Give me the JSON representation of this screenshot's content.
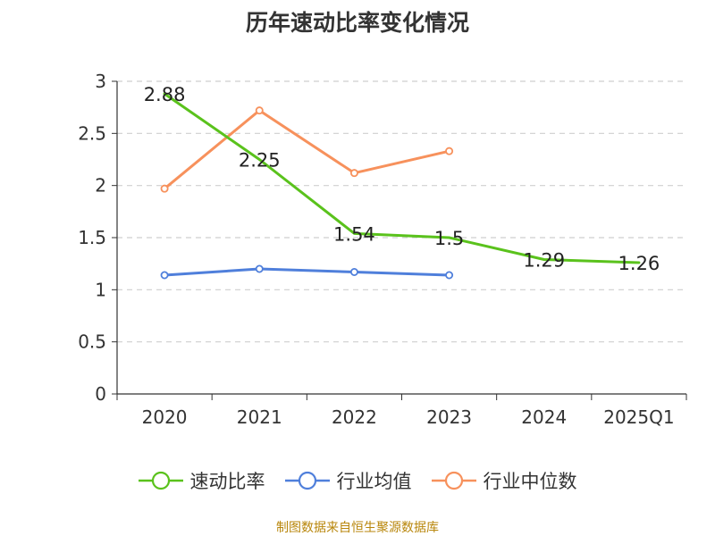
{
  "chart_data": {
    "type": "line",
    "title": "历年速动比率变化情况",
    "categories": [
      "2020",
      "2021",
      "2022",
      "2023",
      "2024",
      "2025Q1"
    ],
    "ylim": [
      0,
      3
    ],
    "yticks": [
      0,
      0.5,
      1,
      1.5,
      2,
      2.5,
      3
    ],
    "ytick_labels": [
      "0",
      "0.5",
      "1",
      "1.5",
      "2",
      "2.5",
      "3"
    ],
    "grid": true,
    "legend_position": "bottom",
    "series": [
      {
        "name": "速动比率",
        "color": "#5ac21c",
        "values": [
          2.88,
          2.25,
          1.54,
          1.5,
          1.29,
          1.26
        ],
        "labels": [
          "2.88",
          "2.25",
          "1.54",
          "1.5",
          "1.29",
          "1.26"
        ],
        "show_markers": false
      },
      {
        "name": "行业均值",
        "color": "#4f7fdb",
        "values": [
          1.14,
          1.2,
          1.17,
          1.14,
          null,
          null
        ],
        "show_markers": true
      },
      {
        "name": "行业中位数",
        "color": "#f7915c",
        "values": [
          1.97,
          2.72,
          2.12,
          2.33,
          null,
          null
        ],
        "show_markers": true
      }
    ]
  },
  "footer": {
    "source": "制图数据来自恒生聚源数据库"
  }
}
